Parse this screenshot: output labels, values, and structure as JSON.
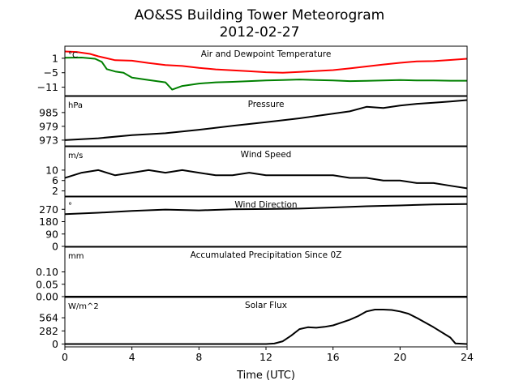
{
  "title": "AO&SS Building Tower Meteorogram",
  "subtitle": "2012-02-27",
  "xlabel": "Time (UTC)",
  "chart_data": [
    {
      "id": "temp",
      "type": "line",
      "title": "Air and Dewpoint Temperature",
      "unit": "°C",
      "x_range": [
        0,
        24
      ],
      "yticks": [
        1,
        -5,
        -11
      ],
      "ytick_labels": [
        "1",
        "−5",
        "−11"
      ],
      "ylim": [
        -14.5,
        6
      ],
      "series": [
        {
          "color": "#ff0000",
          "x": [
            0,
            0.7,
            1.5,
            2,
            2.5,
            3,
            4,
            5,
            6,
            7,
            8,
            9,
            10,
            11,
            12,
            13,
            14,
            15,
            16,
            17,
            18,
            19,
            20,
            21,
            22,
            23,
            24
          ],
          "y": [
            3.8,
            3.6,
            2.8,
            1.8,
            1.0,
            0.2,
            0.0,
            -1.0,
            -1.8,
            -2.2,
            -3.0,
            -3.6,
            -4.0,
            -4.4,
            -4.8,
            -5.0,
            -4.7,
            -4.3,
            -3.9,
            -3.2,
            -2.4,
            -1.6,
            -0.9,
            -0.3,
            -0.2,
            0.3,
            0.8
          ]
        },
        {
          "color": "#008000",
          "x": [
            0,
            1,
            1.8,
            2.2,
            2.5,
            3,
            3.5,
            4,
            5,
            6,
            6.4,
            7,
            8,
            9,
            10,
            11,
            12,
            13,
            14,
            15,
            16,
            17,
            18,
            19,
            20,
            21,
            22,
            23,
            24
          ],
          "y": [
            1.2,
            1.3,
            0.8,
            -0.5,
            -3.5,
            -4.5,
            -5.0,
            -7.0,
            -8.0,
            -9.0,
            -12.0,
            -10.5,
            -9.5,
            -9.0,
            -8.8,
            -8.5,
            -8.2,
            -8.0,
            -7.8,
            -8.0,
            -8.2,
            -8.5,
            -8.4,
            -8.2,
            -8.0,
            -8.2,
            -8.2,
            -8.3,
            -8.3
          ]
        }
      ]
    },
    {
      "id": "pressure",
      "type": "line",
      "title": "Pressure",
      "unit": "hPa",
      "x_range": [
        0,
        24
      ],
      "yticks": [
        985,
        979,
        973
      ],
      "ytick_labels": [
        "985",
        "979",
        "973"
      ],
      "ylim": [
        970.5,
        992
      ],
      "series": [
        {
          "color": "#000000",
          "x": [
            0,
            2,
            4,
            6,
            8,
            10,
            12,
            14,
            16,
            17,
            18,
            19,
            20,
            21,
            22,
            23,
            24
          ],
          "y": [
            973,
            973.8,
            975.2,
            976,
            977.5,
            979.2,
            980.8,
            982.5,
            984.5,
            985.5,
            987.5,
            987,
            988,
            988.8,
            989.3,
            989.8,
            990.4
          ]
        }
      ]
    },
    {
      "id": "wind-speed",
      "type": "line",
      "title": "Wind Speed",
      "unit": "m/s",
      "x_range": [
        0,
        24
      ],
      "yticks": [
        10,
        6,
        2
      ],
      "ytick_labels": [
        "10",
        "6",
        "2"
      ],
      "ylim": [
        0,
        19
      ],
      "series": [
        {
          "color": "#000000",
          "x": [
            0,
            1,
            2,
            3,
            4,
            5,
            6,
            7,
            8,
            9,
            10,
            11,
            12,
            13,
            14,
            15,
            16,
            17,
            18,
            19,
            20,
            21,
            22,
            23,
            24
          ],
          "y": [
            7,
            9,
            10,
            8,
            9,
            10,
            9,
            10,
            9,
            8,
            8,
            9,
            8,
            8,
            8,
            8,
            8,
            7,
            7,
            6,
            6,
            5,
            5,
            4,
            3
          ]
        }
      ]
    },
    {
      "id": "wind-direction",
      "type": "line",
      "title": "Wind Direction",
      "unit": "°",
      "x_range": [
        0,
        24
      ],
      "yticks": [
        270,
        180,
        90,
        0
      ],
      "ytick_labels": [
        "270",
        "180",
        "90",
        "0"
      ],
      "ylim": [
        0,
        360
      ],
      "series": [
        {
          "color": "#000000",
          "x": [
            0,
            2,
            4,
            6,
            8,
            10,
            12,
            14,
            16,
            18,
            20,
            22,
            24
          ],
          "y": [
            235,
            245,
            258,
            268,
            262,
            270,
            272,
            275,
            283,
            292,
            298,
            306,
            308
          ]
        }
      ]
    },
    {
      "id": "precip",
      "type": "line",
      "title": "Accumulated Precipitation Since 0Z",
      "unit": "mm",
      "x_range": [
        0,
        24
      ],
      "yticks": [
        0.1,
        0.05,
        0.0
      ],
      "ytick_labels": [
        "0.10",
        "0.05",
        "0.00"
      ],
      "ylim": [
        0,
        0.2
      ],
      "series": [
        {
          "color": "#000000",
          "x": [
            0,
            24
          ],
          "y": [
            0,
            0
          ]
        }
      ]
    },
    {
      "id": "solar",
      "type": "line",
      "title": "Solar Flux",
      "unit": "W/m^2",
      "x_range": [
        0,
        24
      ],
      "xticks": [
        0,
        4,
        8,
        12,
        16,
        20,
        24
      ],
      "yticks": [
        564,
        282,
        0
      ],
      "ytick_labels": [
        "564",
        "282",
        "0"
      ],
      "ylim": [
        -60,
        1000
      ],
      "series": [
        {
          "color": "#000000",
          "x": [
            0,
            12,
            12.5,
            13,
            13.5,
            14,
            14.5,
            15,
            15.5,
            16,
            16.5,
            17,
            17.5,
            18,
            18.5,
            19,
            19.5,
            20,
            20.5,
            21,
            22,
            23,
            23.3,
            24
          ],
          "y": [
            0,
            0,
            12,
            60,
            180,
            320,
            360,
            350,
            370,
            400,
            460,
            520,
            600,
            700,
            740,
            740,
            730,
            700,
            650,
            560,
            360,
            140,
            15,
            0
          ]
        }
      ]
    }
  ]
}
